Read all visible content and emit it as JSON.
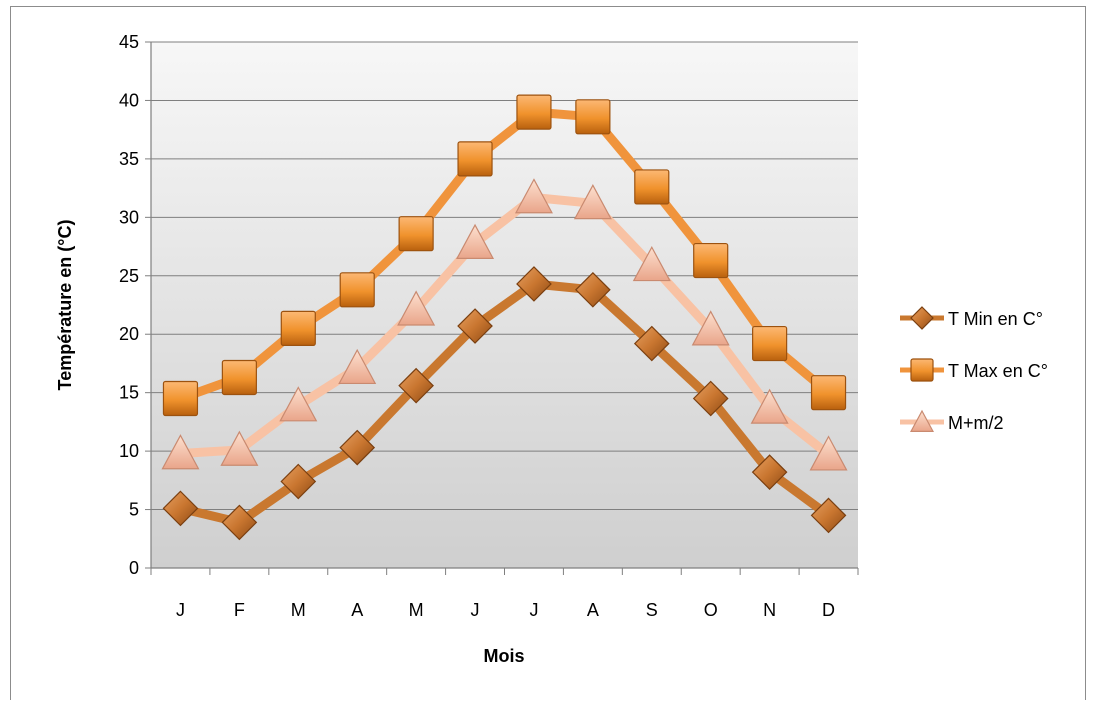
{
  "chart_data": {
    "type": "line",
    "categories": [
      "J",
      "F",
      "M",
      "A",
      "M",
      "J",
      "J",
      "A",
      "S",
      "O",
      "N",
      "D"
    ],
    "series": [
      {
        "name": "T Min en C°",
        "values": [
          5.1,
          3.9,
          7.4,
          10.3,
          15.6,
          20.7,
          24.3,
          23.8,
          19.2,
          14.5,
          8.2,
          4.5
        ],
        "color": "#c9782f",
        "marker": "diamond"
      },
      {
        "name": "T Max en C°",
        "values": [
          14.5,
          16.3,
          20.5,
          23.8,
          28.6,
          35.0,
          39.0,
          38.6,
          32.6,
          26.3,
          19.2,
          15.0
        ],
        "color": "#f0943c",
        "marker": "square"
      },
      {
        "name": "M+m/2",
        "values": [
          9.8,
          10.1,
          13.9,
          17.1,
          22.1,
          27.8,
          31.7,
          31.2,
          25.9,
          20.4,
          13.7,
          9.7
        ],
        "color": "#f8c2a4",
        "marker": "triangle"
      }
    ],
    "xlabel": "Mois",
    "ylabel": "Température en (°C)",
    "ylim": [
      0,
      45
    ],
    "yticks": [
      "0",
      "5",
      "10",
      "15",
      "20",
      "25",
      "30",
      "35",
      "40",
      "45"
    ],
    "grid": true,
    "legend_position": "right"
  }
}
